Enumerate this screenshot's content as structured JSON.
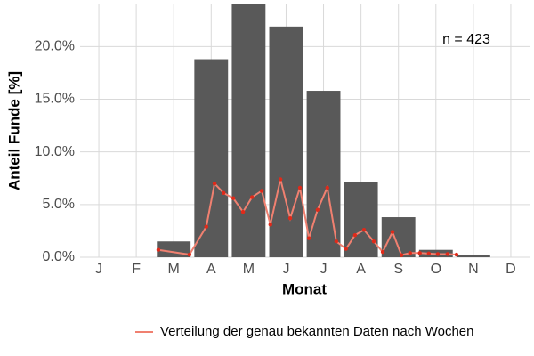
{
  "chart_data": {
    "type": "bar",
    "ylabel": "Anteil Funde [%]",
    "xlabel": "Monat",
    "annotation": "n = 423",
    "categories": [
      "J",
      "F",
      "M",
      "A",
      "M",
      "J",
      "J",
      "A",
      "S",
      "O",
      "N",
      "D"
    ],
    "values": [
      0,
      0,
      1.5,
      18.8,
      24.0,
      21.9,
      15.8,
      7.1,
      3.8,
      0.7,
      0.25,
      0
    ],
    "color": "#595959",
    "xlim": [
      0.5,
      12.5
    ],
    "ylim": [
      0,
      24
    ],
    "yticks": [
      {
        "value": 0,
        "label": "0.0%"
      },
      {
        "value": 5,
        "label": "5.0%"
      },
      {
        "value": 10,
        "label": "10.0%"
      },
      {
        "value": 15,
        "label": "15.0%"
      },
      {
        "value": 20,
        "label": "20.0%"
      }
    ],
    "grid": true,
    "legend": "bottom",
    "series": [
      {
        "name": "Verteilung der genau bekannten Daten nach Wochen",
        "type": "line",
        "color": "#f08070",
        "marker_color": "#e02a1a",
        "x": [
          2.59,
          3.42,
          3.87,
          4.09,
          4.33,
          4.59,
          4.85,
          5.09,
          5.35,
          5.58,
          5.85,
          6.11,
          6.37,
          6.61,
          6.84,
          7.1,
          7.34,
          7.6,
          7.84,
          8.08,
          8.34,
          8.58,
          8.84,
          9.08,
          9.31,
          9.57,
          9.81,
          10.05,
          10.31,
          10.55
        ],
        "values": [
          0.7,
          0.25,
          2.9,
          7.0,
          6.1,
          5.6,
          4.3,
          5.7,
          6.3,
          3.1,
          7.4,
          3.7,
          6.6,
          1.8,
          4.5,
          6.6,
          1.5,
          0.8,
          2.1,
          2.6,
          1.5,
          0.5,
          2.4,
          0.2,
          0.4,
          0.4,
          0.35,
          0.3,
          0.3,
          0.25
        ]
      }
    ]
  }
}
